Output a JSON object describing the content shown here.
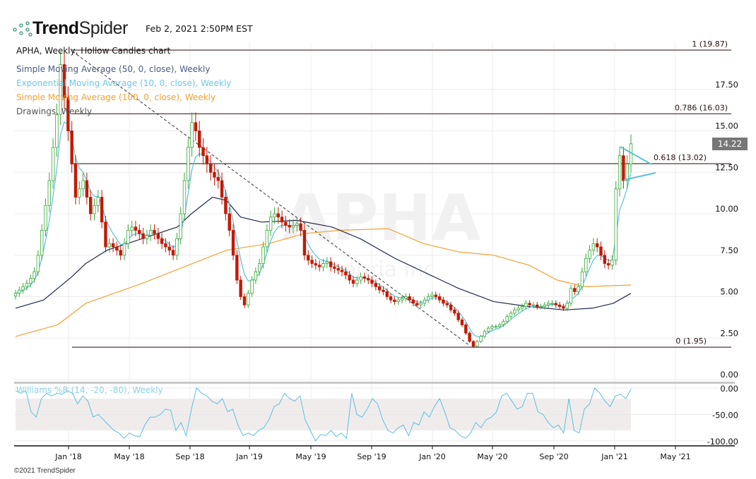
{
  "header": {
    "brand_bold": "Trend",
    "brand_light": "Spider",
    "timestamp": "Feb 2, 2021 2:50PM EST"
  },
  "legend": {
    "chart": "APHA, Weekly, Hollow Candles chart",
    "sma50": "Simple Moving Average (50, 0, close), Weekly",
    "ema10": "Exponential Moving Average (10, 0, close), Weekly",
    "sma100": "Simple Moving Average (100, 0, close), Weekly",
    "drawings": "Drawings, Weekly",
    "williams": "Williams %R (14, -20, -80), Weekly"
  },
  "colors": {
    "up": "#3aa63a",
    "down": "#c01a06",
    "sma50": "#1f2a4d",
    "ema10": "#5bc0de",
    "sma100": "#f5a030",
    "williams": "#5bc0de",
    "fib": "#2a0a0a"
  },
  "watermark": {
    "symbol": "APHA",
    "name": "Aphria Inc"
  },
  "last_price": "14.22",
  "copyright": "©2021 TrendSpider",
  "chart_data": {
    "type": "candlestick",
    "symbol": "APHA",
    "interval": "Weekly",
    "x_range": [
      "Sep 2017",
      "Feb 2021"
    ],
    "x_ticks": [
      "Jan '18",
      "May '18",
      "Sep '18",
      "Jan '19",
      "May '19",
      "Sep '19",
      "Jan '20",
      "May '20",
      "Sep '20",
      "Jan '21",
      "May '21"
    ],
    "y_ticks": [
      "0.00",
      "2.50",
      "5.00",
      "7.50",
      "10.00",
      "12.50",
      "15.00",
      "17.50"
    ],
    "ylim": [
      -0.3,
      20.5
    ],
    "closes": [
      5.2,
      5.4,
      5.6,
      5.8,
      6.1,
      6.5,
      7.5,
      9,
      10.5,
      12,
      14,
      16,
      19,
      17,
      15,
      13,
      11,
      11.5,
      12,
      11,
      10,
      10.5,
      11,
      9.5,
      8,
      8.2,
      8,
      7.8,
      7.5,
      8.2,
      9,
      9.2,
      9,
      8.8,
      8.5,
      8.7,
      9,
      8.8,
      8.5,
      8.2,
      8,
      7.8,
      7.5,
      8.5,
      10,
      12,
      14,
      15.5,
      15,
      14,
      13.5,
      13,
      12.5,
      12.2,
      12,
      11,
      10,
      9,
      7.5,
      6,
      5,
      4.5,
      5.2,
      6,
      6.5,
      7,
      8,
      9,
      9.8,
      10,
      9.8,
      9.5,
      9.3,
      9.2,
      9.3,
      9.4,
      9,
      7.5,
      7.2,
      7,
      6.9,
      6.8,
      7,
      7.1,
      6.8,
      6.7,
      6.6,
      6.5,
      6.3,
      6,
      5.8,
      6,
      6.2,
      6.1,
      6,
      5.8,
      5.6,
      5.4,
      5.3,
      5,
      4.8,
      4.7,
      4.8,
      4.9,
      5,
      4.8,
      4.6,
      4.5,
      4.6,
      4.8,
      5,
      5.1,
      5,
      4.8,
      4.6,
      4.5,
      4.2,
      4,
      3.6,
      3.3,
      2.8,
      2.3,
      2,
      2.3,
      2.6,
      2.9,
      3.1,
      3.2,
      3.2,
      3.3,
      3.5,
      3.8,
      4,
      4.2,
      4.3,
      4.4,
      4.6,
      4.5,
      4.5,
      4.4,
      4.4,
      4.5,
      4.6,
      4.6,
      4.5,
      4.4,
      4.3,
      4.6,
      5.5,
      5.3,
      5.6,
      6.5,
      7.3,
      7.8,
      8.2,
      8,
      7.5,
      7,
      6.9,
      7.2,
      11.5,
      13.5,
      12,
      13,
      14.22
    ],
    "sma50": [
      [
        0,
        4.3
      ],
      [
        8,
        4.8
      ],
      [
        16,
        6.2
      ],
      [
        20,
        7
      ],
      [
        26,
        7.8
      ],
      [
        36,
        8.5
      ],
      [
        46,
        9.2
      ],
      [
        50,
        10
      ],
      [
        56,
        11
      ],
      [
        60,
        10.8
      ],
      [
        64,
        9.8
      ],
      [
        70,
        9.5
      ],
      [
        80,
        9.6
      ],
      [
        90,
        9.2
      ],
      [
        98,
        8.5
      ],
      [
        108,
        7.3
      ],
      [
        116,
        6.5
      ],
      [
        126,
        5.5
      ],
      [
        136,
        4.7
      ],
      [
        146,
        4.4
      ],
      [
        156,
        4.2
      ],
      [
        164,
        4.3
      ],
      [
        170,
        4.6
      ],
      [
        175,
        5.2
      ]
    ],
    "sma100": [
      [
        0,
        2.6
      ],
      [
        12,
        3.3
      ],
      [
        20,
        4.6
      ],
      [
        36,
        5.8
      ],
      [
        48,
        6.8
      ],
      [
        60,
        7.8
      ],
      [
        72,
        8.2
      ],
      [
        82,
        8.8
      ],
      [
        92,
        9
      ],
      [
        106,
        9.1
      ],
      [
        116,
        8.2
      ],
      [
        126,
        7.7
      ],
      [
        136,
        7.5
      ],
      [
        146,
        6.9
      ],
      [
        154,
        6
      ],
      [
        162,
        5.6
      ],
      [
        175,
        5.7
      ]
    ],
    "ema_period": 10,
    "fibonacci": [
      {
        "label": "1 (19.87)",
        "value": 19.87
      },
      {
        "label": "0.786 (16.03)",
        "value": 16.03
      },
      {
        "label": "0.618 (13.02)",
        "value": 13.02
      },
      {
        "label": "0 (1.95)",
        "value": 1.95
      }
    ],
    "williams_r": {
      "y_ticks": [
        "0.00",
        "-50.00",
        "-100.00"
      ],
      "band": [
        -20,
        -80
      ],
      "values": [
        -5,
        -10,
        -5,
        -45,
        -55,
        -20,
        -10,
        -15,
        -10,
        -12,
        -5,
        -10,
        -30,
        -15,
        -25,
        -55,
        -50,
        -60,
        -70,
        -80,
        -85,
        -95,
        -85,
        -90,
        -92,
        -70,
        -55,
        -55,
        -50,
        -40,
        -42,
        -80,
        -65,
        -90,
        -40,
        0,
        -10,
        -15,
        -25,
        -30,
        -20,
        -45,
        -40,
        -70,
        -90,
        -85,
        -90,
        -80,
        -75,
        -60,
        -35,
        -30,
        -10,
        -20,
        -25,
        -15,
        -60,
        -80,
        -100,
        -88,
        -90,
        -80,
        -92,
        -85,
        -95,
        -10,
        -50,
        -55,
        -40,
        -20,
        -30,
        -60,
        -80,
        -85,
        -75,
        -70,
        -90,
        -65,
        -70,
        -45,
        -55,
        -35,
        -20,
        -45,
        -75,
        -80,
        -90,
        -95,
        -85,
        -65,
        -75,
        -60,
        -55,
        -45,
        -15,
        -10,
        -25,
        -40,
        -35,
        -10,
        -10,
        -45,
        -50,
        -65,
        -75,
        -70,
        -85,
        -20,
        -80,
        -85,
        -40,
        -30,
        0,
        -10,
        -25,
        -35,
        -15,
        -12,
        -20,
        -2
      ]
    }
  }
}
